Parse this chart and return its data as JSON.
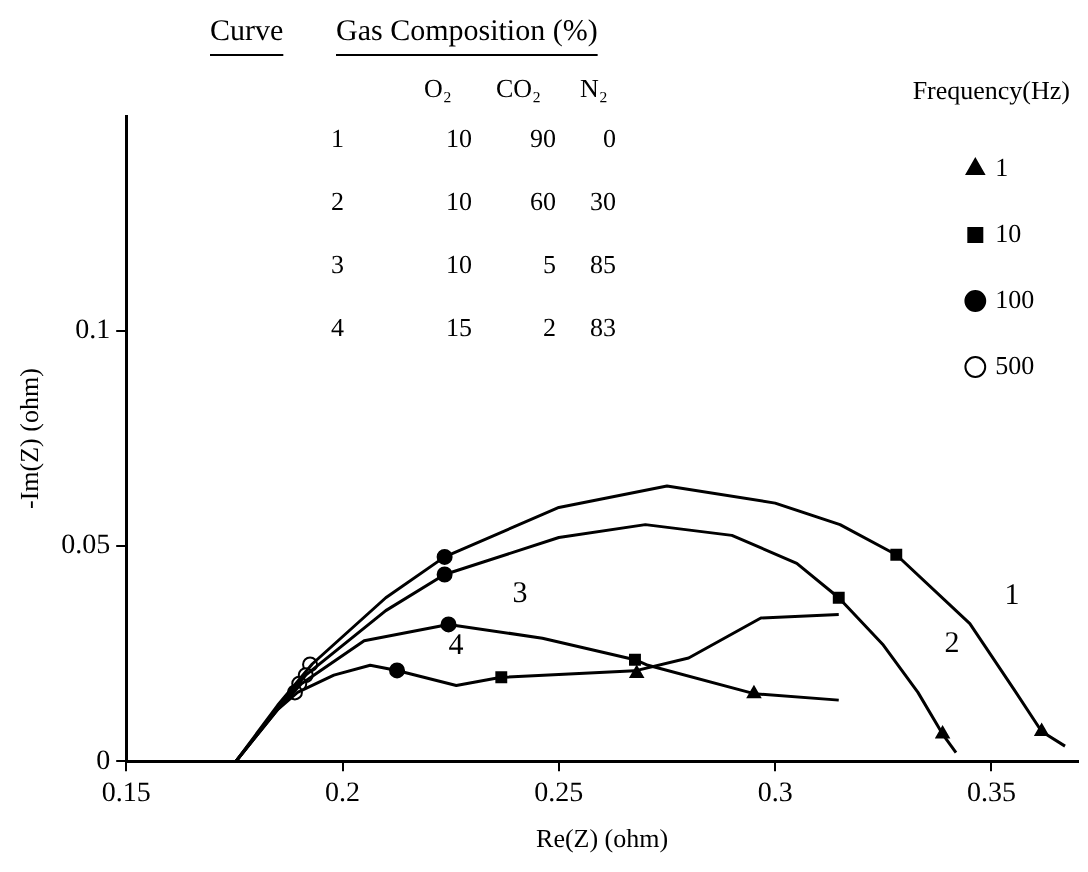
{
  "chart_data": {
    "type": "line",
    "xlabel": "Re(Z) (ohm)",
    "ylabel": "-Im(Z) (ohm)",
    "legend_title": "Frequency(Hz)",
    "legend": "top right",
    "grid": false,
    "xlim": [
      0.15,
      0.37
    ],
    "xticks": [
      0.15,
      0.2,
      0.25,
      0.3,
      0.35
    ],
    "ylim": [
      0,
      0.15
    ],
    "yticks": [
      0,
      0.05,
      0.1
    ],
    "annotations": [
      "Curve",
      "Gas Composition (%)",
      "O₂",
      "CO₂",
      "N₂",
      "1",
      "10",
      "90",
      "0",
      "2",
      "10",
      "60",
      "30",
      "3",
      "10",
      "5",
      "85",
      "4",
      "15",
      "2",
      "83",
      "1",
      "2",
      "3",
      "4"
    ],
    "series": [
      {
        "color": "#000000",
        "marker": "none",
        "x": [
          0.1754,
          0.185,
          0.193,
          0.21,
          0.2236,
          0.25,
          0.275,
          0.3,
          0.315,
          0.328,
          0.345,
          0.355,
          0.3616,
          0.367
        ],
        "values": [
          0,
          0.013,
          0.0226,
          0.038,
          0.0475,
          0.059,
          0.064,
          0.06,
          0.055,
          0.048,
          0.032,
          0.017,
          0.0069,
          0.0035
        ]
      },
      {
        "color": "#000000",
        "marker": "none",
        "x": [
          0.1754,
          0.185,
          0.1915,
          0.21,
          0.2236,
          0.25,
          0.27,
          0.29,
          0.305,
          0.3147,
          0.325,
          0.333,
          0.3387,
          0.3418
        ],
        "values": [
          0,
          0.0125,
          0.02,
          0.035,
          0.0434,
          0.052,
          0.055,
          0.0525,
          0.046,
          0.038,
          0.027,
          0.016,
          0.0063,
          0.002
        ]
      },
      {
        "color": "#000000",
        "marker": "none",
        "x": [
          0.1754,
          0.185,
          0.1905,
          0.205,
          0.2245,
          0.2462,
          0.2676,
          0.2706,
          0.2951,
          0.3147
        ],
        "values": [
          0,
          0.012,
          0.018,
          0.028,
          0.0318,
          0.0286,
          0.0236,
          0.0223,
          0.0157,
          0.0142
        ]
      },
      {
        "color": "#000000",
        "marker": "none",
        "x": [
          0.1754,
          0.185,
          0.1896,
          0.198,
          0.2064,
          0.2126,
          0.2263,
          0.2367,
          0.2676,
          0.28,
          0.2967,
          0.3147
        ],
        "values": [
          0,
          0.012,
          0.016,
          0.02,
          0.0223,
          0.0211,
          0.0176,
          0.0195,
          0.021,
          0.024,
          0.0333,
          0.0341
        ]
      },
      {
        "type": "scatter",
        "name": "1",
        "color": "#000000",
        "marker": "triangle",
        "x": [
          0.3616,
          0.3387,
          0.2951,
          0.268
        ],
        "values": [
          0.0069,
          0.0063,
          0.0157,
          0.0204
        ]
      },
      {
        "type": "scatter",
        "name": "10",
        "color": "#000000",
        "marker": "square",
        "x": [
          0.328,
          0.3147,
          0.2676,
          0.2367
        ],
        "values": [
          0.048,
          0.038,
          0.0236,
          0.0195
        ]
      },
      {
        "type": "scatter",
        "name": "100",
        "color": "#000000",
        "marker": "circle",
        "x": [
          0.2236,
          0.2236,
          0.2245,
          0.2126
        ],
        "values": [
          0.0475,
          0.0434,
          0.0318,
          0.0211
        ]
      },
      {
        "type": "scatter",
        "name": "500",
        "color": "#ffffff",
        "marker": "circle",
        "x": [
          0.1925,
          0.1915,
          0.19,
          0.189
        ],
        "values": [
          0.0225,
          0.02,
          0.018,
          0.016
        ]
      }
    ]
  }
}
